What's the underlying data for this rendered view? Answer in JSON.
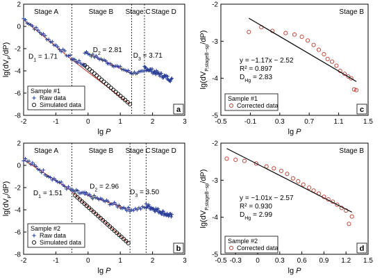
{
  "chart_data": [
    {
      "type": "scatter",
      "panel_label": "a",
      "xlabel": "lg P",
      "ylabel": "lg(dV_P/dP)",
      "xlim": [
        -2,
        3
      ],
      "ylim": [
        -8,
        2
      ],
      "xticks": [
        "-2",
        "-1",
        "0",
        "1",
        "2",
        "3"
      ],
      "yticks": [
        "-8",
        "-6",
        "-4",
        "-2",
        "0",
        "2"
      ],
      "grid": false,
      "legend": {
        "position": "bottom-left",
        "title": "Sample #1",
        "entries": [
          {
            "label": "Raw data",
            "marker": "plus",
            "color": "#2b3f99"
          },
          {
            "label": "Simulated data",
            "marker": "open-circle",
            "color": "#000000"
          }
        ]
      },
      "stage_boundaries": [
        -0.5,
        1.35,
        1.75
      ],
      "stages": [
        {
          "label": "Stage A",
          "x": -1.3
        },
        {
          "label": "Stage B",
          "x": 0.4
        },
        {
          "label": "Stage C",
          "x": 1.55
        },
        {
          "label": "Stage D",
          "x": 2.35
        }
      ],
      "dimension_labels": [
        {
          "text": "D",
          "sub": "1",
          "value": " = 1.71",
          "x": -1.85,
          "y": -2.9
        },
        {
          "text": "D",
          "sub": "2",
          "value": " = 2.81",
          "x": 0.15,
          "y": -2.3
        },
        {
          "text": "D",
          "sub": "3",
          "value": " = 3.71",
          "x": 1.4,
          "y": -2.8
        }
      ],
      "series": [
        {
          "name": "Raw data",
          "marker": "plus",
          "color": "#2b3f99",
          "segments": [
            {
              "x0": -2.0,
              "y0": 0.7,
              "x1": -0.5,
              "y1": -2.9,
              "n": 28,
              "jitter": 0.18
            },
            {
              "x0": -0.5,
              "y0": -2.9,
              "x1": -0.1,
              "y1": -3.5,
              "n": 10,
              "jitter": 0.15
            },
            {
              "x0": -0.1,
              "y0": -2.3,
              "x1": 1.35,
              "y1": -4.2,
              "n": 30,
              "jitter": 0.15
            },
            {
              "x0": 1.35,
              "y0": -4.2,
              "x1": 1.75,
              "y1": -4.1,
              "n": 10,
              "jitter": 0.12
            },
            {
              "x0": 1.75,
              "y0": -3.7,
              "x1": 2.6,
              "y1": -4.8,
              "n": 40,
              "jitter": 0.2
            }
          ]
        },
        {
          "name": "Simulated data",
          "marker": "open-circle",
          "color": "#000000",
          "segments": [
            {
              "x0": -0.1,
              "y0": -3.5,
              "x1": 1.3,
              "y1": -7.0,
              "n": 20,
              "jitter": 0
            }
          ]
        }
      ],
      "fit_lines": [
        {
          "x0": -2.0,
          "y0": 0.6,
          "x1": -0.5,
          "y1": -3.0,
          "color": "#c0392b"
        },
        {
          "x0": -0.5,
          "y0": -3.0,
          "x1": 1.3,
          "y1": -7.0,
          "color": "#c0392b"
        },
        {
          "x0": -0.1,
          "y0": -2.3,
          "x1": 1.35,
          "y1": -4.25,
          "color": "#c0392b"
        }
      ]
    },
    {
      "type": "scatter",
      "panel_label": "b",
      "xlabel": "lg P",
      "ylabel": "lg(dV_P/dP)",
      "xlim": [
        -2,
        3
      ],
      "ylim": [
        -8,
        2
      ],
      "xticks": [
        "-2",
        "-1",
        "0",
        "1",
        "2",
        "3"
      ],
      "yticks": [
        "-8",
        "-6",
        "-4",
        "-2",
        "0",
        "2"
      ],
      "grid": false,
      "legend": {
        "position": "bottom-left",
        "title": "Sample #2",
        "entries": [
          {
            "label": "Raw data",
            "marker": "plus",
            "color": "#2b3f99"
          },
          {
            "label": "Simulated data",
            "marker": "open-circle",
            "color": "#000000"
          }
        ]
      },
      "stage_boundaries": [
        -0.5,
        1.3,
        1.8
      ],
      "stages": [
        {
          "label": "Stage A",
          "x": -1.3
        },
        {
          "label": "Stage B",
          "x": 0.4
        },
        {
          "label": "Stage C",
          "x": 1.55
        },
        {
          "label": "Stage D",
          "x": 2.35
        }
      ],
      "dimension_labels": [
        {
          "text": "D",
          "sub": "1",
          "value": " = 1.51",
          "x": -1.7,
          "y": -2.7
        },
        {
          "text": "D",
          "sub": "2",
          "value": " = 2.96",
          "x": 0.05,
          "y": -2.1
        },
        {
          "text": "D",
          "sub": "3",
          "value": " = 3.50",
          "x": 1.3,
          "y": -2.6
        }
      ],
      "series": [
        {
          "name": "Raw data",
          "marker": "plus",
          "color": "#2b3f99",
          "segments": [
            {
              "x0": -2.0,
              "y0": 0.6,
              "x1": -0.5,
              "y1": -2.3,
              "n": 28,
              "jitter": 0.2
            },
            {
              "x0": -0.5,
              "y0": -2.3,
              "x1": -0.1,
              "y1": -2.6,
              "n": 10,
              "jitter": 0.2
            },
            {
              "x0": -0.1,
              "y0": -2.6,
              "x1": 1.3,
              "y1": -4.0,
              "n": 30,
              "jitter": 0.18
            },
            {
              "x0": 1.3,
              "y0": -4.0,
              "x1": 1.8,
              "y1": -3.8,
              "n": 10,
              "jitter": 0.15
            },
            {
              "x0": 1.8,
              "y0": -3.6,
              "x1": 2.6,
              "y1": -4.6,
              "n": 40,
              "jitter": 0.2
            }
          ]
        },
        {
          "name": "Simulated data",
          "marker": "open-circle",
          "color": "#000000",
          "segments": [
            {
              "x0": -0.4,
              "y0": -2.7,
              "x1": 1.25,
              "y1": -7.0,
              "n": 24,
              "jitter": 0
            }
          ]
        }
      ],
      "fit_lines": [
        {
          "x0": -2.0,
          "y0": 0.5,
          "x1": -0.5,
          "y1": -2.3,
          "color": "#c0392b"
        },
        {
          "x0": -0.5,
          "y0": -2.4,
          "x1": 1.25,
          "y1": -7.0,
          "color": "#c0392b"
        },
        {
          "x0": -0.1,
          "y0": -2.6,
          "x1": 1.3,
          "y1": -4.0,
          "color": "#c0392b"
        }
      ]
    },
    {
      "type": "scatter",
      "panel_label": "c",
      "corner_label": "Stage B",
      "xlabel": "lg P",
      "ylabel": "lg(dV_P,stageB−sp/dP)",
      "xlim": [
        -0.5,
        1.5
      ],
      "ylim": [
        -5,
        -2
      ],
      "xticks": [
        "-0.5",
        "-0.1",
        "0.3",
        "0.7",
        "1.1",
        "1.5"
      ],
      "yticks": [
        "-5",
        "-4",
        "-3",
        "-2"
      ],
      "grid": false,
      "legend": {
        "position": "bottom-left",
        "title": "Sample #1",
        "entries": [
          {
            "label": "Corrected data",
            "marker": "open-circle",
            "color": "#c0392b"
          }
        ]
      },
      "annotation_lines": [
        "y = −1.17x − 2.52",
        "R² = 0.897",
        "D_Hg = 2.83"
      ],
      "series": [
        {
          "name": "Corrected data",
          "marker": "open-circle",
          "color": "#c0392b",
          "points": [
            [
              -0.12,
              -2.75
            ],
            [
              0.05,
              -2.62
            ],
            [
              0.2,
              -2.72
            ],
            [
              0.38,
              -2.78
            ],
            [
              0.5,
              -2.82
            ],
            [
              0.6,
              -2.88
            ],
            [
              0.68,
              -2.98
            ],
            [
              0.76,
              -3.1
            ],
            [
              0.83,
              -3.23
            ],
            [
              0.9,
              -3.35
            ],
            [
              0.95,
              -3.48
            ],
            [
              1.01,
              -3.55
            ],
            [
              1.07,
              -3.66
            ],
            [
              1.12,
              -3.8
            ],
            [
              1.18,
              -3.88
            ],
            [
              1.23,
              -3.95
            ],
            [
              1.27,
              -4.0
            ],
            [
              1.31,
              -4.3
            ],
            [
              1.34,
              -4.32
            ]
          ]
        }
      ],
      "trendline": {
        "slope": -1.17,
        "intercept": -2.52,
        "x0": -0.12,
        "x1": 1.34,
        "color": "#000000"
      }
    },
    {
      "type": "scatter",
      "panel_label": "d",
      "corner_label": "Stage B",
      "xlabel": "lg P",
      "ylabel": "lg(dV_P,stageB−sp/dP)",
      "xlim": [
        -0.5,
        1.5
      ],
      "ylim": [
        -5,
        -2
      ],
      "xticks": [
        "-0.5",
        "-0.3",
        "0",
        "0.3",
        "0.6",
        "0.9",
        "1.2",
        "1.5"
      ],
      "yticks": [
        "-5",
        "-4",
        "-3",
        "-2"
      ],
      "grid": false,
      "legend": {
        "position": "bottom-left",
        "title": "Sample #2",
        "entries": [
          {
            "label": "Corrected data",
            "marker": "open-circle",
            "color": "#c0392b"
          }
        ]
      },
      "annotation_lines": [
        "y = −1.01x − 2.57",
        "R² = 0.930",
        "D_Hg = 2.99"
      ],
      "series": [
        {
          "name": "Corrected data",
          "marker": "open-circle",
          "color": "#c0392b",
          "points": [
            [
              -0.42,
              -2.42
            ],
            [
              -0.3,
              -2.45
            ],
            [
              -0.18,
              -2.48
            ],
            [
              -0.02,
              -2.55
            ],
            [
              0.12,
              -2.63
            ],
            [
              0.22,
              -2.68
            ],
            [
              0.32,
              -2.75
            ],
            [
              0.4,
              -2.83
            ],
            [
              0.48,
              -2.95
            ],
            [
              0.55,
              -3.03
            ],
            [
              0.62,
              -3.12
            ],
            [
              0.7,
              -3.2
            ],
            [
              0.76,
              -3.28
            ],
            [
              0.83,
              -3.36
            ],
            [
              0.9,
              -3.45
            ],
            [
              0.96,
              -3.52
            ],
            [
              1.02,
              -3.58
            ],
            [
              1.08,
              -3.66
            ],
            [
              1.14,
              -3.75
            ],
            [
              1.2,
              -3.82
            ],
            [
              1.24,
              -4.18
            ],
            [
              1.28,
              -3.98
            ]
          ]
        }
      ],
      "trendline": {
        "slope": -1.01,
        "intercept": -2.57,
        "x0": -0.42,
        "x1": 1.28,
        "color": "#000000"
      }
    }
  ]
}
